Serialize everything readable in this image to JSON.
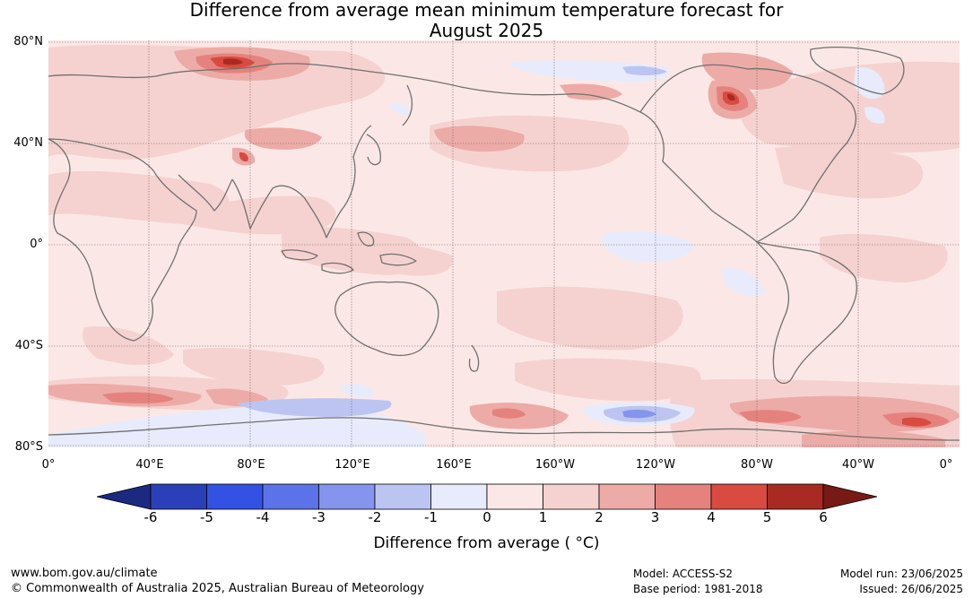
{
  "title_line1": "Difference from average mean minimum temperature forecast for",
  "title_line2": "August 2025",
  "map": {
    "lat_labels": [
      "80°N",
      "40°N",
      "0°",
      "40°S",
      "80°S"
    ],
    "lon_labels": [
      "0°",
      "40°E",
      "80°E",
      "120°E",
      "160°E",
      "160°W",
      "120°W",
      "80°W",
      "40°W",
      "0°"
    ],
    "background_color": "#fbe8e6",
    "coastline_color": "#707070"
  },
  "colorbar": {
    "ticks": [
      "-6",
      "-5",
      "-4",
      "-3",
      "-2",
      "-1",
      "0",
      "1",
      "2",
      "3",
      "4",
      "5",
      "6"
    ],
    "colors": [
      "#1b2a80",
      "#2a3fb8",
      "#3451e6",
      "#5c72e8",
      "#8594ec",
      "#bcc4f2",
      "#e8ebfb",
      "#fbe8e6",
      "#f5d2d0",
      "#ecaba7",
      "#e5827d",
      "#d94a40",
      "#a82a22",
      "#771a15"
    ],
    "label": "Difference from average ( °C)"
  },
  "footer": {
    "url": "www.bom.gov.au/climate",
    "copyright": "© Commonwealth of Australia 2025, Australian Bureau of Meteorology",
    "model": "Model: ACCESS-S2",
    "base_period": "Base period: 1981-2018",
    "model_run": "Model run: 23/06/2025",
    "issued": "Issued: 26/06/2025"
  }
}
